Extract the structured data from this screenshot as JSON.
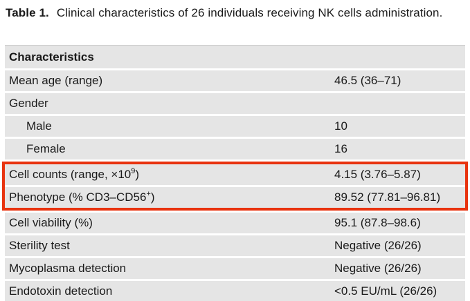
{
  "title": {
    "label": "Table 1.",
    "text": "Clinical characteristics of 26 individuals receiving NK cells administration."
  },
  "colors": {
    "row_bg": "#e5e5e5",
    "highlight_border": "#e8330f",
    "text": "#1a1a1a"
  },
  "table": {
    "header": "Characteristics",
    "rows": [
      {
        "label_parts": [
          {
            "t": "Mean age (range)"
          }
        ],
        "value": "46.5 (36–71)",
        "indent": false,
        "highlighted": false
      },
      {
        "label_parts": [
          {
            "t": "Gender"
          }
        ],
        "value": "",
        "indent": false,
        "highlighted": false
      },
      {
        "label_parts": [
          {
            "t": "Male"
          }
        ],
        "value": "10",
        "indent": true,
        "highlighted": false
      },
      {
        "label_parts": [
          {
            "t": "Female"
          }
        ],
        "value": "16",
        "indent": true,
        "highlighted": false
      },
      {
        "label_parts": [
          {
            "t": "Cell counts (range, ×10"
          },
          {
            "t": "9",
            "sup": true
          },
          {
            "t": ")"
          }
        ],
        "value": "4.15 (3.76–5.87)",
        "indent": false,
        "highlighted": true
      },
      {
        "label_parts": [
          {
            "t": "Phenotype (% CD3–CD56"
          },
          {
            "t": "+",
            "sup": true
          },
          {
            "t": ")"
          }
        ],
        "value": "89.52 (77.81–96.81)",
        "indent": false,
        "highlighted": true
      },
      {
        "label_parts": [
          {
            "t": "Cell viability (%)"
          }
        ],
        "value": "95.1 (87.8–98.6)",
        "indent": false,
        "highlighted": false
      },
      {
        "label_parts": [
          {
            "t": "Sterility test"
          }
        ],
        "value": "Negative (26/26)",
        "indent": false,
        "highlighted": false
      },
      {
        "label_parts": [
          {
            "t": "Mycoplasma detection"
          }
        ],
        "value": "Negative (26/26)",
        "indent": false,
        "highlighted": false
      },
      {
        "label_parts": [
          {
            "t": "Endotoxin detection"
          }
        ],
        "value": "<0.5 EU/mL (26/26)",
        "indent": false,
        "highlighted": false
      }
    ]
  }
}
